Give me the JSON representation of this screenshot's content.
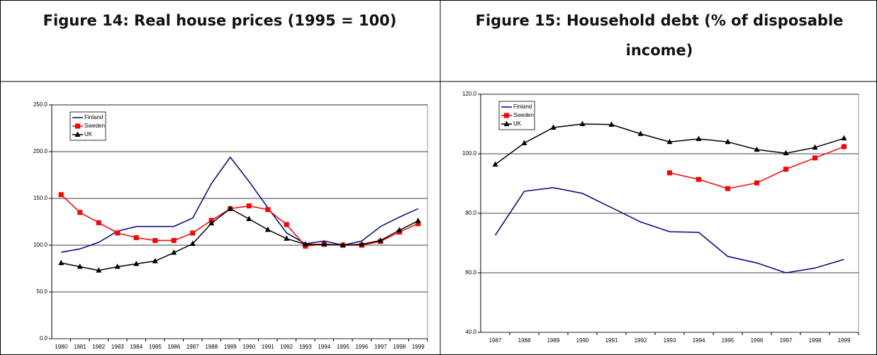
{
  "chart_data": [
    {
      "type": "line",
      "title": "Figure 14: Real house prices (1995 = 100)",
      "categories": [
        "1980",
        "1981",
        "1982",
        "1983",
        "1984",
        "1985",
        "1986",
        "1987",
        "1988",
        "1989",
        "1990",
        "1991",
        "1992",
        "1993",
        "1994",
        "1995",
        "1996",
        "1997",
        "1998",
        "1999"
      ],
      "series": [
        {
          "name": "Finland",
          "color": "#000080",
          "marker": "none",
          "values": [
            92.4,
            96,
            103,
            115,
            120,
            120,
            120,
            129,
            166,
            194,
            168,
            140,
            113,
            101.5,
            104.5,
            100,
            104.5,
            120,
            130,
            139
          ]
        },
        {
          "name": "Sweden",
          "color": "#ff0000",
          "marker": "square",
          "values": [
            154,
            135,
            124,
            113,
            108,
            105,
            105,
            113,
            126.5,
            139,
            142,
            138,
            122,
            99,
            101,
            100,
            100,
            104,
            114,
            123
          ]
        },
        {
          "name": "UK",
          "color": "#000000",
          "marker": "triangle",
          "values": [
            81,
            77,
            73,
            77,
            80,
            83,
            92,
            101.5,
            123.5,
            139,
            128,
            116.5,
            107,
            101,
            101,
            100,
            101,
            105,
            116,
            126
          ]
        }
      ],
      "ylim": [
        0,
        250
      ],
      "yticks": [
        {
          "value": 0,
          "label": "0.0"
        },
        {
          "value": 50,
          "label": "50.0"
        },
        {
          "value": 100,
          "label": "100.0"
        },
        {
          "value": 150,
          "label": "150.0"
        },
        {
          "value": 200,
          "label": "200.0"
        },
        {
          "value": 250,
          "label": "250.0"
        }
      ],
      "grid": true,
      "legend": "upper-left"
    },
    {
      "type": "line",
      "title": "Figure 15: Household debt (% of disposable income)",
      "categories": [
        "1987",
        "1988",
        "1989",
        "1990",
        "1991",
        "1992",
        "1993",
        "1994",
        "1995",
        "1996",
        "1997",
        "1998",
        "1999"
      ],
      "series": [
        {
          "name": "Finland",
          "color": "#000080",
          "marker": "none",
          "values": [
            72.6,
            87.4,
            88.6,
            86.7,
            81.9,
            77.1,
            73.8,
            73.6,
            65.5,
            63.3,
            60,
            61.6,
            64.5
          ]
        },
        {
          "name": "Sweden",
          "color": "#ff0000",
          "marker": "square",
          "values": [
            null,
            null,
            null,
            null,
            null,
            null,
            93.6,
            91.4,
            88.3,
            90.2,
            94.8,
            98.6,
            102.4
          ]
        },
        {
          "name": "UK",
          "color": "#000000",
          "marker": "triangle",
          "values": [
            96.4,
            103.6,
            108.8,
            110,
            109.8,
            106.7,
            104,
            105,
            104,
            101.4,
            100.2,
            102.1,
            105.2
          ]
        }
      ],
      "ylim": [
        40,
        120
      ],
      "yticks": [
        {
          "value": 40,
          "label": "40.0"
        },
        {
          "value": 60,
          "label": "60.0"
        },
        {
          "value": 80,
          "label": "80.0"
        },
        {
          "value": 100,
          "label": "100.0"
        },
        {
          "value": 120,
          "label": "120.0"
        }
      ],
      "grid": true,
      "legend": "upper-left"
    }
  ]
}
